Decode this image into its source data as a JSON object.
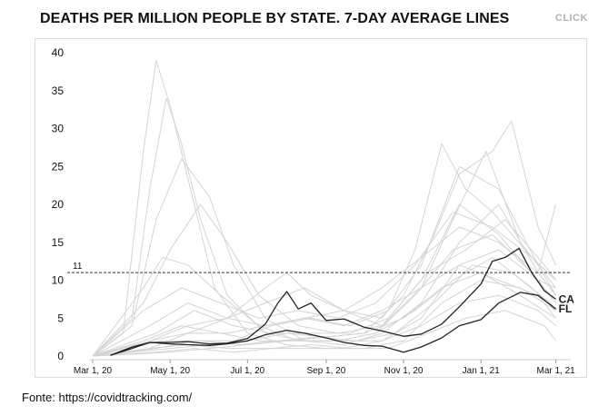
{
  "title": "DEATHS PER MILLION PEOPLE BY STATE. 7-DAY AVERAGE LINES",
  "click_label": "CLICK",
  "source": "Fonte: https://covidtracking.com/",
  "chart_data": {
    "type": "line",
    "title": "DEATHS PER MILLION PEOPLE BY STATE. 7-DAY AVERAGE LINES",
    "xlabel": "",
    "ylabel": "",
    "ylim": [
      0,
      40
    ],
    "xlim": [
      "2020-03-01",
      "2021-03-07"
    ],
    "y_ticks": [
      0,
      5,
      10,
      15,
      20,
      25,
      30,
      35,
      40
    ],
    "x_ticks": [
      "Mar 1, 20",
      "May 1, 20",
      "Jul 1, 20",
      "Sep 1, 20",
      "Nov 1, 20",
      "Jan 1, 21",
      "Mar 1, 21"
    ],
    "x_tick_dates": [
      "2020-03-01",
      "2020-05-01",
      "2020-07-01",
      "2020-09-01",
      "2020-11-01",
      "2021-01-01",
      "2021-03-01"
    ],
    "reference_line": {
      "y": 11,
      "label": "11"
    },
    "grid": false,
    "highlighted_series": [
      {
        "name": "CA",
        "color": "#222222",
        "x": [
          "2020-03-15",
          "2020-04-01",
          "2020-04-15",
          "2020-05-01",
          "2020-05-15",
          "2020-06-01",
          "2020-06-15",
          "2020-07-01",
          "2020-07-15",
          "2020-07-25",
          "2020-08-01",
          "2020-08-10",
          "2020-08-20",
          "2020-09-01",
          "2020-09-15",
          "2020-10-01",
          "2020-10-15",
          "2020-11-01",
          "2020-11-15",
          "2020-12-01",
          "2020-12-15",
          "2021-01-01",
          "2021-01-10",
          "2021-01-20",
          "2021-01-31",
          "2021-02-10",
          "2021-02-20",
          "2021-03-01"
        ],
        "y": [
          0.1,
          1.0,
          1.8,
          1.8,
          1.9,
          1.6,
          1.7,
          2.3,
          4.2,
          7.0,
          8.5,
          6.2,
          7.0,
          4.7,
          4.9,
          3.8,
          3.3,
          2.6,
          2.9,
          4.2,
          6.5,
          9.5,
          12.5,
          13.0,
          14.2,
          11.0,
          8.6,
          7.5
        ]
      },
      {
        "name": "FL",
        "color": "#222222",
        "x": [
          "2020-03-15",
          "2020-04-01",
          "2020-04-15",
          "2020-05-01",
          "2020-05-15",
          "2020-06-01",
          "2020-06-15",
          "2020-07-01",
          "2020-07-15",
          "2020-08-01",
          "2020-08-15",
          "2020-09-01",
          "2020-09-15",
          "2020-10-01",
          "2020-10-15",
          "2020-11-01",
          "2020-11-15",
          "2020-12-01",
          "2020-12-15",
          "2021-01-01",
          "2021-01-15",
          "2021-02-01",
          "2021-02-15",
          "2021-03-01"
        ],
        "y": [
          0.1,
          1.2,
          1.8,
          1.6,
          1.5,
          1.4,
          1.6,
          2.0,
          2.8,
          3.4,
          3.0,
          2.4,
          1.8,
          1.4,
          1.3,
          0.5,
          1.2,
          2.4,
          4.0,
          4.8,
          7.0,
          8.4,
          8.0,
          6.2
        ]
      }
    ],
    "background_series_color": "#d4d4d4",
    "background_series": [
      {
        "x": [
          "2020-03-01",
          "2020-03-25",
          "2020-04-10",
          "2020-04-20",
          "2020-05-01",
          "2020-05-20",
          "2020-06-05",
          "2020-07-01",
          "2020-08-01",
          "2020-09-01",
          "2020-10-01",
          "2020-11-01",
          "2020-12-01",
          "2021-01-01",
          "2021-02-01",
          "2021-03-01"
        ],
        "y": [
          0,
          3,
          27,
          39,
          33,
          20,
          9,
          3,
          1.5,
          1,
          1,
          2,
          7,
          10,
          9,
          6
        ]
      },
      {
        "x": [
          "2020-03-01",
          "2020-04-01",
          "2020-04-15",
          "2020-04-28",
          "2020-05-10",
          "2020-05-25",
          "2020-06-15",
          "2020-07-15",
          "2020-08-15",
          "2020-09-15",
          "2020-10-15",
          "2020-11-15",
          "2020-12-15",
          "2021-01-15",
          "2021-02-15",
          "2021-03-01"
        ],
        "y": [
          0,
          5,
          22,
          34,
          28,
          18,
          8,
          3,
          2,
          2,
          2,
          5,
          12,
          14,
          10,
          7
        ]
      },
      {
        "x": [
          "2020-03-01",
          "2020-04-01",
          "2020-04-20",
          "2020-05-10",
          "2020-06-01",
          "2020-06-20",
          "2020-07-15",
          "2020-08-15",
          "2020-09-15",
          "2020-10-15",
          "2020-11-15",
          "2020-12-15",
          "2021-01-15",
          "2021-02-15",
          "2021-03-01"
        ],
        "y": [
          0,
          4,
          18,
          26,
          21,
          12,
          5,
          2,
          1.5,
          3,
          7,
          15,
          20,
          11,
          8
        ]
      },
      {
        "x": [
          "2020-03-01",
          "2020-04-10",
          "2020-05-01",
          "2020-05-25",
          "2020-06-15",
          "2020-07-10",
          "2020-08-10",
          "2020-09-10",
          "2020-10-15",
          "2020-11-15",
          "2020-12-10",
          "2021-01-05",
          "2021-02-01",
          "2021-03-01"
        ],
        "y": [
          0,
          7,
          14,
          20,
          15,
          8,
          4,
          3,
          4,
          9,
          18,
          27,
          15,
          9
        ]
      },
      {
        "x": [
          "2020-03-01",
          "2020-04-15",
          "2020-05-15",
          "2020-06-15",
          "2020-07-15",
          "2020-08-01",
          "2020-08-20",
          "2020-09-15",
          "2020-10-15",
          "2020-11-15",
          "2020-12-15",
          "2021-01-15",
          "2021-02-15",
          "2021-03-01"
        ],
        "y": [
          0,
          2,
          4,
          5,
          9,
          11,
          8,
          6,
          5,
          12,
          25,
          22,
          12,
          8
        ]
      },
      {
        "x": [
          "2020-03-01",
          "2020-04-20",
          "2020-05-20",
          "2020-06-20",
          "2020-07-20",
          "2020-08-20",
          "2020-09-20",
          "2020-10-20",
          "2020-11-10",
          "2020-12-01",
          "2020-12-20",
          "2021-01-10",
          "2021-02-10",
          "2021-03-01"
        ],
        "y": [
          0,
          1,
          2,
          2,
          4,
          5,
          4,
          6,
          14,
          28,
          22,
          19,
          13,
          10
        ]
      },
      {
        "x": [
          "2020-03-01",
          "2020-05-01",
          "2020-06-01",
          "2020-07-01",
          "2020-08-01",
          "2020-09-01",
          "2020-10-01",
          "2020-11-01",
          "2020-11-25",
          "2020-12-15",
          "2021-01-10",
          "2021-01-25",
          "2021-02-15",
          "2021-03-01"
        ],
        "y": [
          0,
          1,
          1.5,
          2,
          3,
          2.5,
          3,
          8,
          16,
          24,
          27,
          31,
          17,
          12
        ]
      },
      {
        "x": [
          "2020-03-01",
          "2020-04-15",
          "2020-05-15",
          "2020-06-15",
          "2020-07-15",
          "2020-08-15",
          "2020-09-15",
          "2020-10-15",
          "2020-11-15",
          "2020-12-15",
          "2021-01-15",
          "2021-02-15",
          "2021-03-01"
        ],
        "y": [
          0,
          1,
          3,
          5,
          7,
          9,
          6,
          4,
          10,
          20,
          16,
          10,
          9
        ]
      },
      {
        "x": [
          "2020-03-01",
          "2020-04-10",
          "2020-04-25",
          "2020-05-15",
          "2020-06-10",
          "2020-07-10",
          "2020-08-10",
          "2020-09-10",
          "2020-10-10",
          "2020-11-10",
          "2020-12-10",
          "2021-01-10",
          "2021-02-10",
          "2021-03-01"
        ],
        "y": [
          0,
          9,
          13,
          12,
          8,
          4,
          2,
          2,
          3,
          8,
          14,
          16,
          11,
          7
        ]
      },
      {
        "x": [
          "2020-03-01",
          "2020-04-15",
          "2020-05-15",
          "2020-06-15",
          "2020-07-15",
          "2020-08-15",
          "2020-09-15",
          "2020-10-15",
          "2020-11-15",
          "2020-12-15",
          "2021-01-15",
          "2021-02-15",
          "2021-03-01"
        ],
        "y": [
          0,
          2,
          3,
          3,
          4,
          5,
          6,
          9,
          13,
          17,
          15,
          11,
          20
        ]
      },
      {
        "x": [
          "2020-03-01",
          "2020-04-20",
          "2020-05-20",
          "2020-06-20",
          "2020-07-20",
          "2020-08-20",
          "2020-09-20",
          "2020-10-20",
          "2020-11-20",
          "2020-12-20",
          "2021-01-20",
          "2021-02-20",
          "2021-03-01"
        ],
        "y": [
          0,
          3,
          6,
          4,
          3,
          3,
          3,
          5,
          11,
          14,
          18,
          12,
          10
        ]
      },
      {
        "x": [
          "2020-03-01",
          "2020-04-10",
          "2020-05-10",
          "2020-06-10",
          "2020-07-10",
          "2020-08-10",
          "2020-09-10",
          "2020-10-10",
          "2020-11-10",
          "2020-12-10",
          "2021-01-10",
          "2021-02-10",
          "2021-03-01"
        ],
        "y": [
          0,
          2,
          4,
          3,
          2,
          2,
          2,
          3,
          6,
          10,
          13,
          9,
          6
        ]
      },
      {
        "x": [
          "2020-03-01",
          "2020-05-01",
          "2020-06-01",
          "2020-07-01",
          "2020-08-01",
          "2020-09-01",
          "2020-10-01",
          "2020-11-01",
          "2020-12-01",
          "2021-01-01",
          "2021-02-01",
          "2021-03-01"
        ],
        "y": [
          0,
          0.5,
          1,
          1.5,
          2,
          2.5,
          3,
          5,
          9,
          11,
          8,
          5
        ]
      },
      {
        "x": [
          "2020-03-01",
          "2020-04-15",
          "2020-05-15",
          "2020-06-15",
          "2020-07-15",
          "2020-08-15",
          "2020-09-15",
          "2020-10-15",
          "2020-11-15",
          "2020-12-15",
          "2021-01-15",
          "2021-02-15",
          "2021-03-01"
        ],
        "y": [
          0,
          1,
          1.5,
          1,
          1,
          1,
          1,
          2,
          4,
          7,
          8,
          6,
          4
        ]
      },
      {
        "x": [
          "2020-03-01",
          "2020-04-20",
          "2020-05-20",
          "2020-06-20",
          "2020-07-20",
          "2020-08-20",
          "2020-09-20",
          "2020-10-20",
          "2020-11-20",
          "2020-12-20",
          "2021-01-20",
          "2021-02-20",
          "2021-03-01"
        ],
        "y": [
          0,
          0.5,
          1,
          0.5,
          1,
          1.5,
          1,
          1,
          3,
          5,
          6,
          4,
          2
        ]
      },
      {
        "x": [
          "2020-03-01",
          "2020-04-15",
          "2020-05-15",
          "2020-06-15",
          "2020-07-15",
          "2020-08-15",
          "2020-09-15",
          "2020-10-15",
          "2020-11-15",
          "2020-12-15",
          "2021-01-15",
          "2021-02-15",
          "2021-03-01"
        ],
        "y": [
          0,
          4,
          7,
          5,
          4,
          5,
          4,
          6,
          9,
          12,
          10,
          8,
          5
        ]
      },
      {
        "x": [
          "2020-03-01",
          "2020-04-25",
          "2020-05-25",
          "2020-06-25",
          "2020-07-25",
          "2020-08-25",
          "2020-09-25",
          "2020-10-25",
          "2020-11-25",
          "2020-12-25",
          "2021-01-25",
          "2021-02-25",
          "2021-03-01"
        ],
        "y": [
          0,
          2,
          2,
          1.5,
          2,
          2.5,
          2,
          3,
          7,
          12,
          11,
          7,
          6
        ]
      },
      {
        "x": [
          "2020-03-01",
          "2020-04-10",
          "2020-05-10",
          "2020-06-10",
          "2020-07-10",
          "2020-08-10",
          "2020-09-10",
          "2020-10-10",
          "2020-11-10",
          "2020-12-10",
          "2021-01-10",
          "2021-02-10",
          "2021-03-01"
        ],
        "y": [
          0,
          6,
          9,
          7,
          5,
          6,
          5,
          7,
          12,
          19,
          17,
          13,
          10
        ]
      }
    ]
  }
}
